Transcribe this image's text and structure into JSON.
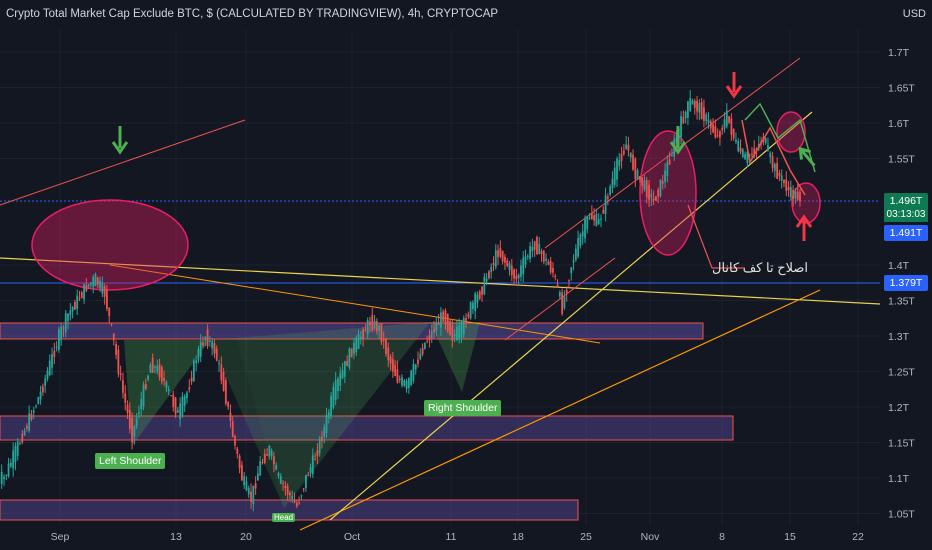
{
  "title": "Crypto Total Market Cap Exclude BTC, $ (CALCULATED BY TRADINGVIEW), 4h, CRYPTOCAP",
  "currency": "USD",
  "colors": {
    "background": "#131722",
    "grid": "#1e2230",
    "up": "#26a69a",
    "down": "#ef5350",
    "current_price": "#0d7a52",
    "blue_label": "#2962ff",
    "zone": "#5b4a9e",
    "ellipse": "#e91e63",
    "arrow_green": "#4caf50",
    "arrow_red": "#f23645"
  },
  "price_labels": {
    "current": "1.496T",
    "countdown": "03:13:03",
    "line_a": "1.491T",
    "line_b": "1.379T"
  },
  "annotations": {
    "left_shoulder": "Left Shoulder",
    "right_shoulder": "Right Shoulder",
    "head": "Head",
    "arabic": "اصلاح تا کف کانال"
  },
  "chart_data": {
    "type": "line",
    "y_axis": {
      "ticks": [
        "1.7T",
        "1.65T",
        "1.6T",
        "1.55T",
        "1.4T",
        "1.35T",
        "1.3T",
        "1.25T",
        "1.2T",
        "1.15T",
        "1.1T",
        "1.05T"
      ],
      "ylim": [
        1.04,
        1.74
      ]
    },
    "x_axis": {
      "ticks": [
        "Sep",
        "13",
        "20",
        "Oct",
        "11",
        "18",
        "25",
        "Nov",
        "8",
        "15",
        "22"
      ]
    },
    "series": [
      {
        "values": [
          1.1,
          1.13,
          1.16,
          1.19,
          1.22,
          1.26,
          1.3,
          1.33,
          1.35,
          1.37,
          1.38,
          1.36,
          1.29,
          1.22,
          1.16,
          1.21,
          1.26,
          1.25,
          1.22,
          1.19,
          1.22,
          1.27,
          1.3,
          1.28,
          1.23,
          1.16,
          1.1,
          1.07,
          1.12,
          1.14,
          1.1,
          1.08,
          1.06,
          1.1,
          1.13,
          1.17,
          1.22,
          1.25,
          1.28,
          1.3,
          1.32,
          1.31,
          1.27,
          1.24,
          1.23,
          1.26,
          1.29,
          1.31,
          1.33,
          1.3,
          1.31,
          1.34,
          1.36,
          1.39,
          1.42,
          1.4,
          1.38,
          1.41,
          1.43,
          1.41,
          1.39,
          1.34,
          1.4,
          1.44,
          1.47,
          1.46,
          1.5,
          1.54,
          1.57,
          1.53,
          1.51,
          1.49,
          1.52,
          1.56,
          1.6,
          1.63,
          1.62,
          1.6,
          1.58,
          1.61,
          1.57,
          1.55,
          1.56,
          1.58,
          1.54,
          1.52,
          1.5,
          1.496
        ]
      }
    ],
    "horizontal_lines": [
      1.496,
      1.491,
      1.379
    ]
  }
}
